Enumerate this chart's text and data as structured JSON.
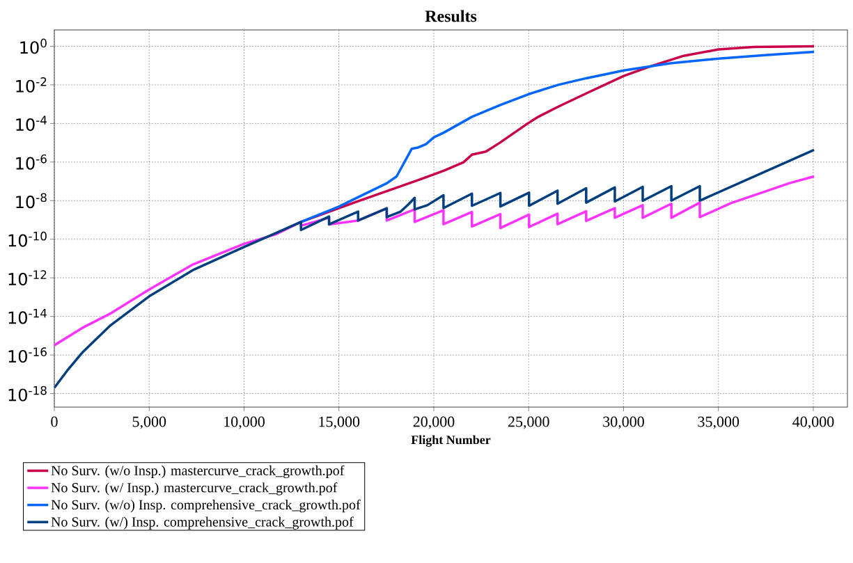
{
  "chart_data": {
    "type": "line",
    "title": "Results",
    "xlabel": "Flight Number",
    "xlim": [
      0,
      41800
    ],
    "ylim": [
      2e-19,
      7
    ],
    "log": "y",
    "grid": true,
    "legend": "bottom",
    "xticks": [
      0,
      {
        "value": 5000,
        "label": "5,000"
      },
      {
        "value": 10000,
        "label": "10,000"
      },
      {
        "value": 15000,
        "label": "15,000"
      },
      {
        "value": 20000,
        "label": "20,000"
      },
      {
        "value": 25000,
        "label": "25,000"
      },
      {
        "value": 30000,
        "label": "30,000"
      },
      {
        "value": 35000,
        "label": "35,000"
      },
      {
        "value": 40000,
        "label": "40,000"
      }
    ],
    "yticks": [
      {
        "value": 1e-18,
        "label": "10$^{-18}$"
      },
      {
        "value": 1e-16,
        "label": "10$^{-16}$"
      },
      {
        "value": 1e-14,
        "label": "10$^{-14}$"
      },
      {
        "value": 1e-12,
        "label": "10$^{-12}$"
      },
      {
        "value": 1e-10,
        "label": "10$^{-10}$"
      },
      {
        "value": 1e-08,
        "label": "10$^{-8}$"
      },
      {
        "value": 1e-06,
        "label": "10$^{-6}$"
      },
      {
        "value": 0.0001,
        "label": "10$^{-4}$"
      },
      {
        "value": 0.01,
        "label": "10$^{-2}$"
      },
      {
        "value": 1,
        "label": "10$^{0}$"
      }
    ],
    "series": [
      {
        "name": "No Surv. (w/o Insp.) mastercurve_crack_growth.pof",
        "color": "#c8004a",
        "x": [
          13000,
          16010,
          19220,
          20540,
          21570,
          22010,
          22750,
          23480,
          24950,
          25540,
          26560,
          28030,
          30010,
          31410,
          33170,
          35000,
          36840,
          40040
        ],
        "values": [
          7.9e-10,
          9.3e-09,
          1.2e-07,
          3.6e-07,
          9.8e-07,
          2.4e-06,
          3.5e-06,
          1e-05,
          0.0001,
          0.00023,
          0.00074,
          0.0036,
          0.029,
          0.091,
          0.32,
          0.68,
          0.91,
          1
        ]
      },
      {
        "name": "No Surv. (w/ Insp.) mastercurve_crack_growth.pof",
        "color": "#ff33ff",
        "x": [
          0,
          1460,
          3000,
          5000,
          7300,
          10000,
          11680,
          13000,
          13000,
          14480,
          14480,
          16010,
          17520,
          17520,
          18990,
          18990,
          20510,
          20510,
          22010,
          22010,
          23510,
          23510,
          25020,
          25020,
          26520,
          26520,
          28030,
          28030,
          29540,
          29540,
          31010,
          31010,
          32520,
          32520,
          34020,
          34020,
          35660,
          37280,
          38750,
          40040
        ],
        "values": [
          3.2e-16,
          2.5e-15,
          1.5e-14,
          2.5e-13,
          4.9e-12,
          5.8e-11,
          1.8e-10,
          7.9e-10,
          5e-10,
          1.3e-09,
          5.9e-10,
          9.3e-10,
          4e-09,
          9.3e-10,
          3.5e-09,
          7.9e-10,
          3.2e-09,
          6e-10,
          2.6e-09,
          4.6e-10,
          2e-09,
          3.8e-10,
          1.9e-09,
          4.3e-10,
          2.1e-09,
          6e-10,
          2.8e-09,
          8.9e-10,
          4.1e-09,
          1.3e-09,
          5.8e-09,
          1.3e-09,
          6.9e-09,
          1.3e-09,
          7.9e-09,
          1.4e-09,
          7.4e-09,
          2.6e-08,
          8.1e-08,
          1.8e-07
        ]
      },
      {
        "name": "No Surv. (w/o) Insp. comprehensive_crack_growth.pof",
        "color": "#0066ff",
        "x": [
          13000,
          15000,
          16010,
          17520,
          18040,
          18840,
          19130,
          19590,
          20000,
          20540,
          22010,
          23480,
          25000,
          26560,
          28030,
          30010,
          32440,
          35000,
          37570,
          40040
        ],
        "values": [
          7.9e-10,
          4.9e-09,
          1.5e-08,
          7.9e-08,
          1.8e-07,
          4.9e-06,
          5.5e-06,
          8.5e-06,
          1.9e-05,
          3.4e-05,
          0.00022,
          0.00089,
          0.0033,
          0.01,
          0.022,
          0.056,
          0.13,
          0.23,
          0.35,
          0.51
        ]
      },
      {
        "name": "No Surv. (w/) Insp. comprehensive_crack_growth.pof",
        "color": "#003f7f",
        "x": [
          0,
          730,
          1460,
          2920,
          5000,
          7300,
          10000,
          11680,
          13000,
          13000,
          14480,
          14480,
          16010,
          16010,
          17520,
          17520,
          18250,
          18690,
          18990,
          18990,
          19660,
          20510,
          20510,
          22010,
          22010,
          23510,
          23510,
          25020,
          25020,
          26520,
          26520,
          28030,
          28030,
          29540,
          29540,
          31010,
          31010,
          32520,
          32520,
          34020,
          34020,
          40040
        ],
        "values": [
          2e-18,
          1.8e-17,
          1.3e-16,
          3.2e-15,
          1.1e-13,
          2.5e-12,
          4e-11,
          2.1e-10,
          7.9e-10,
          3e-10,
          1.5e-09,
          5.9e-10,
          2.7e-09,
          9.3e-10,
          4e-09,
          1.4e-09,
          2.7e-09,
          6.8e-09,
          1.4e-08,
          3.5e-09,
          5.8e-09,
          1.9e-08,
          4.1e-09,
          2.3e-08,
          5.4e-09,
          2.5e-08,
          5e-09,
          2.6e-08,
          5.4e-09,
          3.3e-08,
          6.9e-09,
          4.4e-08,
          7.9e-09,
          4.8e-08,
          9.1e-09,
          5.2e-08,
          9.8e-09,
          5.6e-08,
          1e-08,
          5.6e-08,
          1e-08,
          4.3e-06
        ]
      }
    ]
  }
}
